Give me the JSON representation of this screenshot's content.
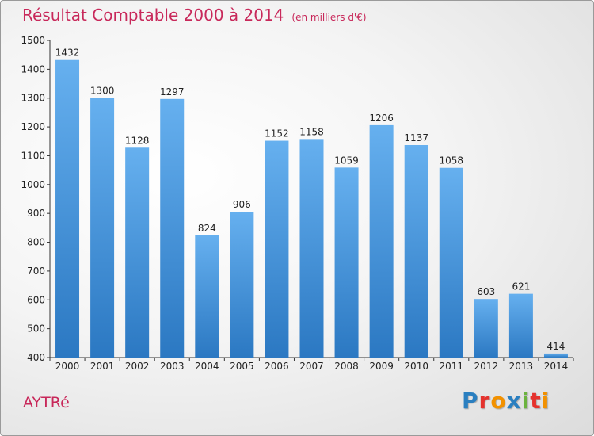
{
  "title": "Résultat Comptable 2000 à 2014",
  "unit_note": "(en milliers d'€)",
  "city": "AYTRé",
  "logo": {
    "letters": [
      "P",
      "r",
      "o",
      "x",
      "i",
      "t",
      "i"
    ],
    "colors": [
      "#2a7fc0",
      "#e5322d",
      "#f29100",
      "#2a7fc0",
      "#6cb33f",
      "#e5322d",
      "#f29100"
    ]
  },
  "colors": {
    "bar_light": "#66b0ef",
    "bar_dark": "#2b78c2",
    "title": "#c8285a"
  },
  "chart_data": {
    "type": "bar",
    "title": "Résultat Comptable 2000 à 2014",
    "xlabel": "",
    "ylabel": "(en milliers d'€)",
    "categories": [
      "2000",
      "2001",
      "2002",
      "2003",
      "2004",
      "2005",
      "2006",
      "2007",
      "2008",
      "2009",
      "2010",
      "2011",
      "2012",
      "2013",
      "2014"
    ],
    "values": [
      1432,
      1300,
      1128,
      1297,
      824,
      906,
      1152,
      1158,
      1059,
      1206,
      1137,
      1058,
      603,
      621,
      414
    ],
    "ylim": [
      400,
      1500
    ],
    "yticks": [
      "400",
      "500",
      "600",
      "700",
      "800",
      "900",
      "1000",
      "1100",
      "1200",
      "1300",
      "1400",
      "1500"
    ],
    "grid": false
  }
}
